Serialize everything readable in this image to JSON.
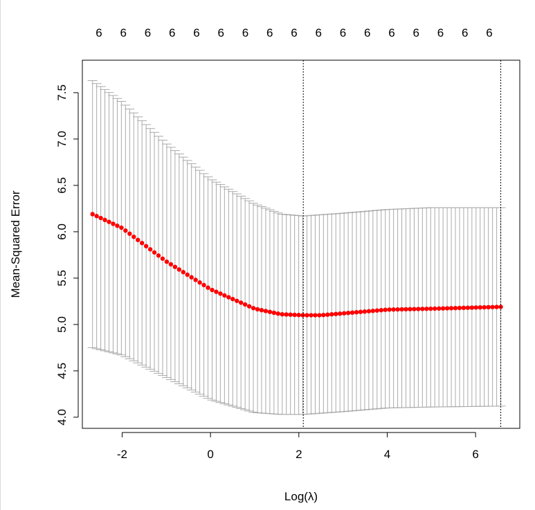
{
  "chart_data": {
    "type": "scatter",
    "xlabel": "Log(λ)",
    "ylabel": "Mean-Squared Error",
    "xlim": [
      -2.9,
      7.0
    ],
    "ylim": [
      3.88,
      7.85
    ],
    "x_ticks": [
      -2,
      0,
      2,
      4,
      6
    ],
    "x_tick_labels": [
      "-2",
      "0",
      "2",
      "4",
      "6"
    ],
    "y_ticks": [
      4.0,
      4.5,
      5.0,
      5.5,
      6.0,
      6.5,
      7.0,
      7.5
    ],
    "y_tick_labels": [
      "4.0",
      "4.5",
      "5.0",
      "5.5",
      "6.0",
      "6.5",
      "7.0",
      "7.5"
    ],
    "top_axis_labels": [
      "6",
      "6",
      "6",
      "6",
      "6",
      "6",
      "6",
      "6",
      "6",
      "6",
      "6",
      "6",
      "6",
      "6",
      "6",
      "6",
      "6"
    ],
    "reference_lines": [
      2.1,
      6.57
    ],
    "series": [
      {
        "x": [
          -2.67,
          6.57
        ],
        "x_is_range": true,
        "n_points": 100,
        "mean_keypoints": [
          {
            "x": -2.67,
            "y": 6.19
          },
          {
            "x": -2.0,
            "y": 6.04
          },
          {
            "x": -1.0,
            "y": 5.68
          },
          {
            "x": 0.0,
            "y": 5.38
          },
          {
            "x": 1.0,
            "y": 5.17
          },
          {
            "x": 1.6,
            "y": 5.11
          },
          {
            "x": 2.1,
            "y": 5.1
          },
          {
            "x": 2.5,
            "y": 5.1
          },
          {
            "x": 3.0,
            "y": 5.12
          },
          {
            "x": 4.0,
            "y": 5.16
          },
          {
            "x": 5.0,
            "y": 5.17
          },
          {
            "x": 6.57,
            "y": 5.19
          }
        ],
        "upper_keypoints": [
          {
            "x": -2.67,
            "y": 7.63
          },
          {
            "x": -2.0,
            "y": 7.4
          },
          {
            "x": -1.0,
            "y": 6.95
          },
          {
            "x": 0.0,
            "y": 6.57
          },
          {
            "x": 1.0,
            "y": 6.3
          },
          {
            "x": 1.6,
            "y": 6.19
          },
          {
            "x": 2.1,
            "y": 6.17
          },
          {
            "x": 3.0,
            "y": 6.2
          },
          {
            "x": 4.0,
            "y": 6.24
          },
          {
            "x": 5.0,
            "y": 6.26
          },
          {
            "x": 6.57,
            "y": 6.26
          }
        ],
        "lower_keypoints": [
          {
            "x": -2.67,
            "y": 4.75
          },
          {
            "x": -2.0,
            "y": 4.67
          },
          {
            "x": -1.0,
            "y": 4.43
          },
          {
            "x": 0.0,
            "y": 4.19
          },
          {
            "x": 1.0,
            "y": 4.05
          },
          {
            "x": 1.6,
            "y": 4.03
          },
          {
            "x": 2.1,
            "y": 4.03
          },
          {
            "x": 3.0,
            "y": 4.06
          },
          {
            "x": 4.0,
            "y": 4.1
          },
          {
            "x": 5.0,
            "y": 4.11
          },
          {
            "x": 6.57,
            "y": 4.12
          }
        ]
      }
    ],
    "colors": {
      "points": "#ff0000",
      "error_bars": "#aaaaaa",
      "axis": "#000000"
    },
    "grid": false
  }
}
